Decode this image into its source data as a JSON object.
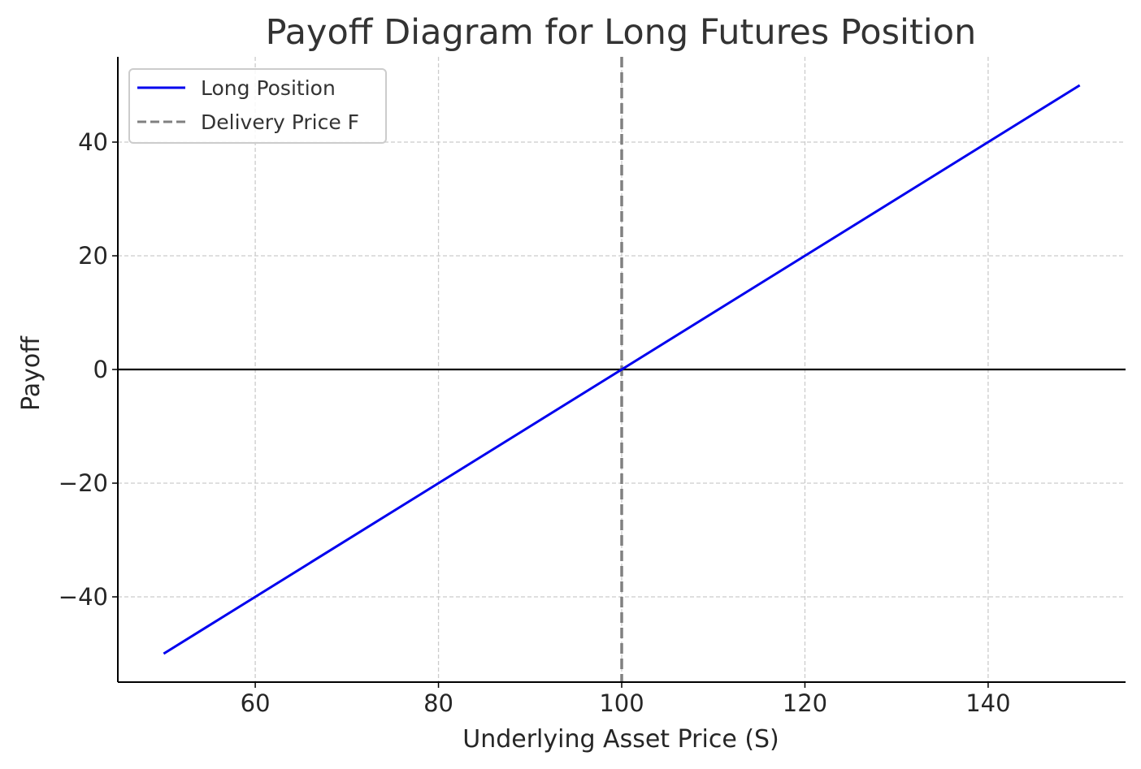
{
  "chart_data": {
    "type": "line",
    "title": "Payoff Diagram for Long Futures Position",
    "xlabel": "Underlying Asset Price (S)",
    "ylabel": "Payoff",
    "xlim": [
      45,
      155
    ],
    "ylim": [
      -55,
      55
    ],
    "xticks": [
      60,
      80,
      100,
      120,
      140
    ],
    "yticks": [
      -40,
      -20,
      0,
      20,
      40
    ],
    "xtick_labels": [
      "60",
      "80",
      "100",
      "120",
      "140"
    ],
    "ytick_labels": [
      "−40",
      "−20",
      "0",
      "20",
      "40"
    ],
    "grid": true,
    "legend_position": "upper-left",
    "series": [
      {
        "name": "Long Position",
        "color": "#0000ee",
        "style": "solid",
        "x": [
          50,
          150
        ],
        "y": [
          -50,
          50
        ]
      }
    ],
    "reference_lines": [
      {
        "name": "Delivery Price F",
        "orientation": "vertical",
        "value": 100,
        "color": "#808080",
        "style": "dashed"
      },
      {
        "orientation": "horizontal",
        "value": 0,
        "color": "#000000",
        "style": "solid"
      }
    ]
  }
}
